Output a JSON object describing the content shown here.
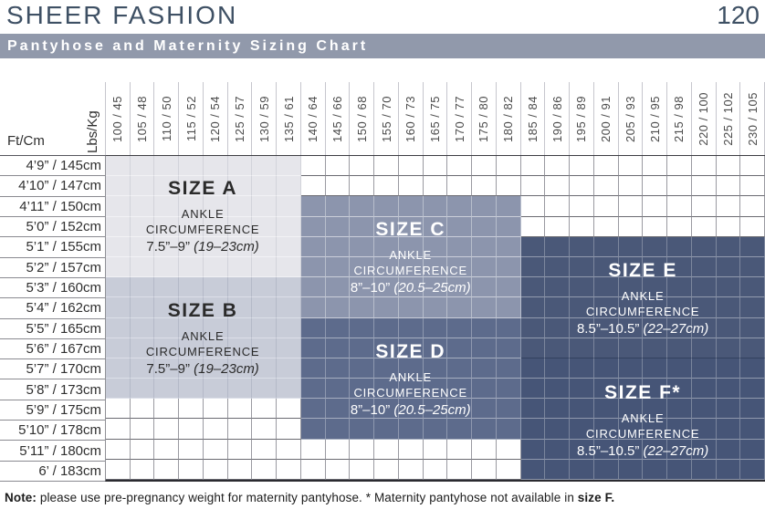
{
  "header": {
    "brand": "SHEER FASHION",
    "page_number": "120",
    "banner_title": "Pantyhose and Maternity Sizing Chart"
  },
  "axes": {
    "weight_label": "Lbs/Kg",
    "height_label": "Ft/Cm"
  },
  "note": {
    "prefix": "Note:",
    "body": " please use pre-pregnancy weight for maternity pantyhose. * Maternity pantyhose not available in ",
    "suffix": "size F."
  },
  "chart_data": {
    "type": "table",
    "title": "Pantyhose and Maternity Sizing Chart",
    "grid": {
      "n_cols": 27,
      "n_rows": 16
    },
    "columns_weight_lbs_kg": [
      "100 / 45",
      "105 / 48",
      "110 / 50",
      "115 / 52",
      "120 / 54",
      "125 / 57",
      "130 / 59",
      "135 / 61",
      "140 / 64",
      "145 / 66",
      "150 / 68",
      "155 / 70",
      "160 / 73",
      "165 / 75",
      "170 / 77",
      "175 / 80",
      "180 / 82",
      "185 / 84",
      "190 / 86",
      "195 / 89",
      "200 / 91",
      "205 / 93",
      "210 / 95",
      "215 / 98",
      "220 / 100",
      "225 / 102",
      "230 / 105"
    ],
    "rows_height_ft_cm": [
      "4’9” / 145cm",
      "4’10” / 147cm",
      "4’11” / 150cm",
      "5’0” / 152cm",
      "5’1” / 155cm",
      "5’2” / 157cm",
      "5’3” / 160cm",
      "5’4” / 162cm",
      "5’5” / 165cm",
      "5’6” / 167cm",
      "5’7” / 170cm",
      "5’8” / 173cm",
      "5’9” / 175cm",
      "5’10” / 178cm",
      "5’11” / 180cm",
      "6’ / 183cm"
    ],
    "sizes": [
      {
        "id": "a",
        "title": "SIZE A",
        "ankle": [
          "ANKLE",
          "CIRCUMFERENCE"
        ],
        "range_inches": "7.5”–9”",
        "range_cm": "(19–23cm)",
        "col_start": 1,
        "col_end": 8,
        "row_start": 1,
        "row_end": 6,
        "fill": "#e6e6eb",
        "line_v": "#d2d3da",
        "line_h": "#f2f2f5",
        "text_color": "#2b2b2b"
      },
      {
        "id": "b",
        "title": "SIZE B",
        "ankle": [
          "ANKLE",
          "CIRCUMFERENCE"
        ],
        "range_inches": "7.5”–9”",
        "range_cm": "(19–23cm)",
        "col_start": 1,
        "col_end": 8,
        "row_start": 7,
        "row_end": 12,
        "fill": "#c8ccd8",
        "line_v": "#b4b9c8",
        "line_h": "#dcdfe8",
        "text_color": "#2b2b2b"
      },
      {
        "id": "c",
        "title": "SIZE C",
        "ankle": [
          "ANKLE",
          "CIRCUMFERENCE"
        ],
        "range_inches": "8”–10”",
        "range_cm": "(20.5–25cm)",
        "col_start": 9,
        "col_end": 17,
        "row_start": 3,
        "row_end": 8,
        "fill": "#8c95ad",
        "line_v": "rgba(255,255,255,0.38)",
        "line_h": "rgba(255,255,255,0.55)",
        "text_color": "#ffffff"
      },
      {
        "id": "d",
        "title": "SIZE D",
        "ankle": [
          "ANKLE",
          "CIRCUMFERENCE"
        ],
        "range_inches": "8”–10”",
        "range_cm": "(20.5–25cm)",
        "col_start": 9,
        "col_end": 17,
        "row_start": 9,
        "row_end": 14,
        "fill": "#5d6b8c",
        "line_v": "rgba(255,255,255,0.30)",
        "line_h": "rgba(255,255,255,0.45)",
        "text_color": "#ffffff"
      },
      {
        "id": "e",
        "title": "SIZE E",
        "ankle": [
          "ANKLE",
          "CIRCUMFERENCE"
        ],
        "range_inches": "8.5”–10.5”",
        "range_cm": "(22–27cm)",
        "col_start": 18,
        "col_end": 27,
        "row_start": 5,
        "row_end": 10,
        "fill": "#4a5878",
        "line_v": "rgba(255,255,255,0.28)",
        "line_h": "rgba(255,255,255,0.40)",
        "bottom_edge": "#32415f",
        "text_color": "#ffffff"
      },
      {
        "id": "f",
        "title": "SIZE F*",
        "ankle": [
          "ANKLE",
          "CIRCUMFERENCE"
        ],
        "range_inches": "8.5”–10.5”",
        "range_cm": "(22–27cm)",
        "col_start": 18,
        "col_end": 27,
        "row_start": 11,
        "row_end": 16,
        "fill": "#465577",
        "line_v": "rgba(255,255,255,0.28)",
        "line_h": "rgba(255,255,255,0.40)",
        "text_color": "#ffffff"
      }
    ]
  }
}
